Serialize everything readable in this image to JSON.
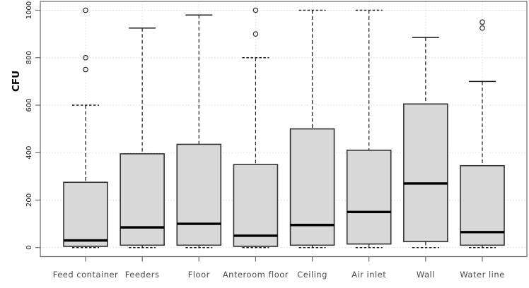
{
  "chart_data": {
    "type": "boxplot",
    "title": "",
    "xlabel": "",
    "ylabel": "CFU",
    "ylim": [
      0,
      1000
    ],
    "y_ticks": [
      0,
      200,
      400,
      600,
      800,
      1000
    ],
    "grid": "dotted light-gray horizontal lines at each y tick and vertical lines at each category center",
    "legend": "none",
    "categories": [
      "Feed container",
      "Feeders",
      "Floor",
      "Anteroom floor",
      "Ceiling",
      "Air inlet",
      "Wall",
      "Water line"
    ],
    "boxes": [
      {
        "category": "Feed container",
        "whisker_low": 0,
        "q1": 5,
        "median": 30,
        "q3": 275,
        "whisker_high": 600,
        "outliers": [
          750,
          800,
          1000
        ],
        "cap_high_style": "dashed"
      },
      {
        "category": "Feeders",
        "whisker_low": 0,
        "q1": 10,
        "median": 85,
        "q3": 395,
        "whisker_high": 925,
        "outliers": [],
        "cap_high_style": "solid"
      },
      {
        "category": "Floor",
        "whisker_low": 0,
        "q1": 10,
        "median": 100,
        "q3": 435,
        "whisker_high": 980,
        "outliers": [],
        "cap_high_style": "solid"
      },
      {
        "category": "Anteroom floor",
        "whisker_low": 0,
        "q1": 5,
        "median": 50,
        "q3": 350,
        "whisker_high": 800,
        "outliers": [
          900,
          1000
        ],
        "cap_high_style": "dashed"
      },
      {
        "category": "Ceiling",
        "whisker_low": 0,
        "q1": 10,
        "median": 95,
        "q3": 500,
        "whisker_high": 1000,
        "outliers": [],
        "cap_high_style": "dashed"
      },
      {
        "category": "Air inlet",
        "whisker_low": 0,
        "q1": 15,
        "median": 150,
        "q3": 410,
        "whisker_high": 1000,
        "outliers": [],
        "cap_high_style": "dashed"
      },
      {
        "category": "Wall",
        "whisker_low": 0,
        "q1": 25,
        "median": 270,
        "q3": 605,
        "whisker_high": 885,
        "outliers": [],
        "cap_high_style": "solid"
      },
      {
        "category": "Water line",
        "whisker_low": 0,
        "q1": 10,
        "median": 65,
        "q3": 345,
        "whisker_high": 700,
        "outliers": [
          925,
          950
        ],
        "cap_high_style": "solid"
      }
    ],
    "colors": {
      "box_fill": "#d8d8d8",
      "box_border": "#333333",
      "median": "#000000",
      "whisker": "#1a1a1a",
      "grid": "#dcdcdc",
      "frame": "#6b6b6b",
      "y_tick_label": "#1a1a1a",
      "category_label": "#4a4a4a",
      "background": "#ffffff"
    }
  }
}
